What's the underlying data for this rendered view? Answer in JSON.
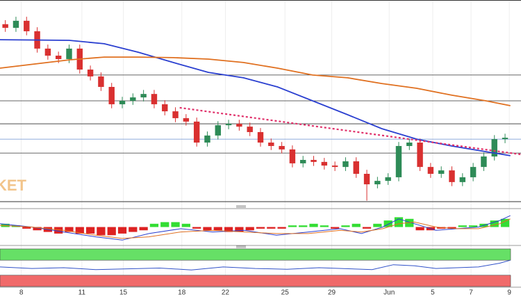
{
  "chart_data": {
    "type": "candlestick",
    "watermark": "KET",
    "xlim": [
      0,
      49
    ],
    "xticks": [
      {
        "value": 2.0,
        "label": "8"
      },
      {
        "value": 7.7,
        "label": "11"
      },
      {
        "value": 11.6,
        "label": "15"
      },
      {
        "value": 17.1,
        "label": "18"
      },
      {
        "value": 21.2,
        "label": "22"
      },
      {
        "value": 26.8,
        "label": "25"
      },
      {
        "value": 31.2,
        "label": "29"
      },
      {
        "value": 36.6,
        "label": "Jun"
      },
      {
        "value": 40.7,
        "label": "5"
      },
      {
        "value": 44.3,
        "label": "7"
      },
      {
        "value": 47.9,
        "label": "9"
      }
    ],
    "ylim": [
      0,
      100
    ],
    "up_color": "#2e8b57",
    "down_color": "#d93030",
    "x": [
      0.5,
      1.5,
      2.5,
      3.5,
      4.5,
      5.5,
      6.5,
      7.5,
      8.5,
      9.5,
      10.5,
      11.5,
      12.5,
      13.5,
      14.5,
      15.5,
      16.5,
      17.5,
      18.5,
      19.5,
      20.5,
      21.5,
      22.5,
      23.5,
      24.5,
      25.5,
      26.5,
      27.5,
      28.5,
      29.5,
      30.5,
      31.5,
      32.5,
      33.5,
      34.5,
      35.5,
      36.5,
      37.5,
      38.5,
      39.5,
      40.5,
      41.5,
      42.5,
      43.5,
      44.5,
      45.5,
      46.5,
      47.5
    ],
    "open": [
      88.0,
      86.2,
      89.7,
      84.5,
      75.9,
      72.4,
      70.7,
      75.9,
      65.5,
      62.1,
      56.9,
      48.3,
      50.0,
      51.7,
      53.4,
      48.3,
      44.8,
      41.4,
      39.7,
      29.3,
      32.8,
      37.9,
      38.6,
      37.2,
      34.5,
      29.3,
      27.6,
      25.9,
      19.0,
      20.7,
      19.7,
      17.9,
      17.2,
      20.0,
      13.8,
      8.6,
      10.3,
      12.1,
      27.6,
      29.3,
      17.2,
      13.8,
      15.5,
      9.7,
      12.1,
      17.2,
      22.4,
      31.0
    ],
    "high": [
      90.0,
      91.7,
      91.7,
      86.5,
      77.9,
      74.4,
      77.9,
      77.9,
      67.5,
      64.1,
      58.9,
      52.0,
      53.7,
      55.4,
      55.4,
      50.3,
      46.8,
      43.4,
      41.7,
      34.8,
      39.9,
      40.6,
      40.6,
      39.2,
      36.5,
      31.3,
      29.6,
      27.9,
      22.7,
      22.7,
      21.7,
      19.9,
      22.0,
      22.0,
      15.8,
      12.3,
      14.1,
      29.6,
      31.3,
      31.3,
      19.2,
      17.5,
      17.5,
      14.1,
      19.2,
      24.4,
      33.0,
      33.7
    ],
    "low": [
      84.2,
      84.2,
      82.5,
      73.9,
      70.4,
      68.7,
      68.7,
      63.5,
      60.1,
      54.9,
      46.3,
      46.3,
      48.0,
      49.7,
      46.3,
      42.8,
      39.4,
      37.7,
      27.3,
      27.3,
      30.8,
      35.9,
      35.2,
      32.5,
      27.3,
      25.6,
      23.9,
      17.0,
      17.0,
      17.7,
      15.9,
      15.2,
      15.2,
      11.8,
      0.5,
      6.6,
      8.3,
      10.1,
      25.6,
      15.2,
      11.8,
      11.8,
      7.7,
      7.7,
      10.1,
      15.2,
      20.4,
      29.0
    ],
    "close": [
      86.2,
      89.7,
      84.5,
      75.9,
      72.4,
      70.7,
      75.9,
      65.5,
      62.1,
      56.9,
      48.3,
      50.0,
      51.7,
      53.4,
      48.3,
      44.8,
      41.4,
      39.7,
      29.3,
      32.8,
      37.9,
      38.6,
      37.2,
      34.5,
      29.3,
      27.6,
      25.9,
      19.0,
      20.7,
      19.7,
      17.9,
      17.2,
      20.0,
      13.8,
      8.6,
      10.3,
      12.1,
      27.6,
      29.3,
      17.2,
      13.8,
      15.5,
      9.7,
      12.1,
      17.2,
      22.4,
      31.0,
      31.7
    ],
    "hlines": [
      62.8,
      50.0,
      38.6,
      24.1
    ],
    "hline_color": "#333333",
    "price_line": 31.0,
    "price_line_color": "#6a8fd0",
    "series": [
      {
        "color": "#2a3fd0",
        "x": [
          0,
          6.5,
          9.8,
          13,
          16.3,
          19.6,
          22.9,
          26.1,
          29.4,
          32.7,
          35.9,
          39.2,
          42.5,
          45.7,
          48
        ],
        "values": [
          80.3,
          80.0,
          78.3,
          74.1,
          69.0,
          64.1,
          61.4,
          56.9,
          50.0,
          43.1,
          36.2,
          31.0,
          27.6,
          24.8,
          22.8
        ]
      },
      {
        "color": "#e07020",
        "x": [
          0,
          6.5,
          9.8,
          13,
          16.3,
          19.6,
          22.9,
          26.1,
          29.4,
          32.7,
          35.9,
          39.2,
          42.5,
          45.7,
          48
        ],
        "values": [
          66.2,
          70.3,
          71.7,
          71.7,
          71.4,
          70.7,
          69.0,
          66.2,
          62.8,
          61.4,
          58.6,
          56.2,
          52.8,
          50.0,
          47.6
        ]
      }
    ],
    "trendline": {
      "color": "#e0306a",
      "x": [
        16.9,
        49
      ],
      "values": [
        46.6,
        23.4
      ]
    },
    "macd": {
      "ylim": [
        -10,
        10
      ],
      "histogram": [
        2,
        1,
        -1,
        -2,
        -3,
        -4,
        -3,
        -4,
        -4,
        -5,
        -5,
        -4,
        -3,
        -2,
        2,
        3,
        3,
        2,
        -1,
        -2,
        -2,
        -3,
        -3,
        -2,
        -1,
        -1,
        -1,
        1,
        1,
        2,
        1,
        -1,
        1,
        2,
        -1,
        2,
        4,
        6,
        5,
        -2,
        -2,
        -1,
        -1,
        1,
        1,
        2,
        4,
        5
      ],
      "pos_color": "#33dd33",
      "neg_color": "#dd2222",
      "lines": [
        {
          "color": "#2a3fd0",
          "x": [
            0,
            3,
            6,
            9,
            11.5,
            14,
            17,
            20,
            23,
            26,
            29,
            32,
            34,
            36,
            37.5,
            39,
            41,
            43,
            45,
            47,
            48
          ],
          "values": [
            2,
            0,
            -3,
            -6,
            -8,
            -4,
            -1,
            -3,
            -2,
            -5,
            -3,
            -1,
            -4,
            0,
            5,
            2,
            -2,
            -1,
            0,
            4,
            7
          ]
        },
        {
          "color": "#e07020",
          "x": [
            0,
            3,
            6,
            9,
            11.5,
            14,
            17,
            20,
            23,
            26,
            29,
            32,
            34,
            36,
            37.5,
            39,
            41,
            43,
            45,
            47,
            48
          ],
          "values": [
            1,
            0,
            -2,
            -5,
            -7,
            -6,
            -3,
            -2,
            -3,
            -4,
            -4,
            -2,
            -3,
            -1,
            2,
            3,
            0,
            -1,
            -1,
            2,
            5
          ]
        }
      ]
    },
    "rsi": {
      "ylim": [
        0,
        100
      ],
      "zones": [
        {
          "from": 70,
          "to": 100,
          "color": "#66e066"
        },
        {
          "from": 0,
          "to": 30,
          "color": "#f06a6a"
        }
      ],
      "color": "#3050c8",
      "x": [
        0,
        3,
        6,
        9,
        12,
        15,
        18,
        21,
        24,
        27,
        30,
        33,
        35,
        37,
        39,
        41,
        43,
        45,
        47,
        48
      ],
      "values": [
        52,
        48,
        50,
        45,
        47,
        49,
        44,
        52,
        48,
        46,
        50,
        47,
        45,
        58,
        55,
        48,
        50,
        52,
        62,
        70
      ]
    }
  }
}
